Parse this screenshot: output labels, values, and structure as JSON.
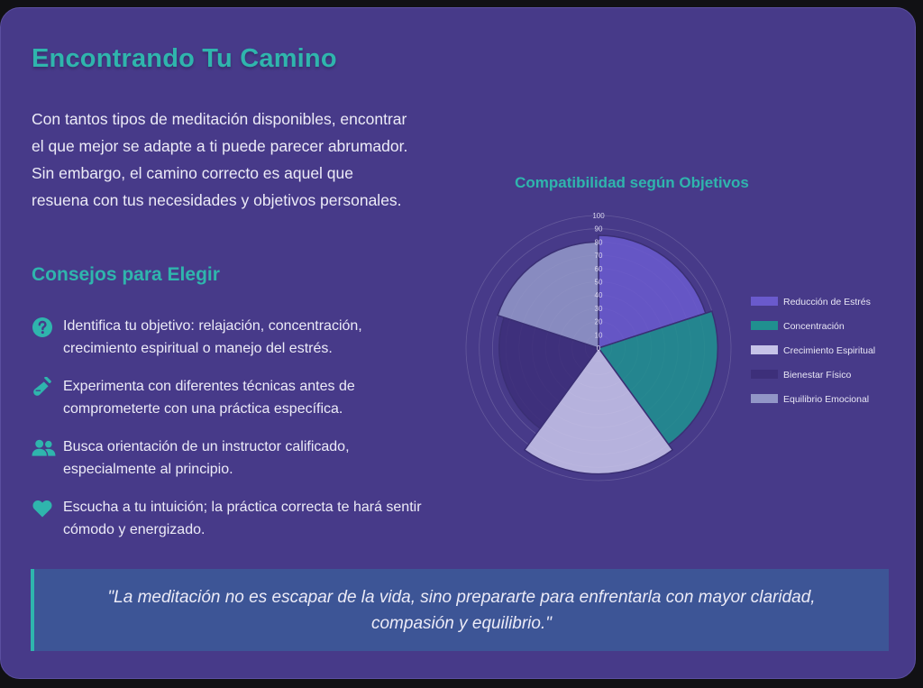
{
  "page": {
    "title": "Encontrando Tu Camino",
    "intro": "Con tantos tipos de meditación disponibles, encontrar el que mejor se adapte a ti puede parecer abrumador. Sin embargo, el camino correcto es aquel que resuena con tus necesidades y objetivos personales.",
    "subtitle": "Consejos para Elegir",
    "tips": [
      {
        "icon": "question-icon",
        "text": "Identifica tu objetivo: relajación, concentración, crecimiento espiritual o manejo del estrés."
      },
      {
        "icon": "flask-icon",
        "text": "Experimenta con diferentes técnicas antes de comprometerte con una práctica específica."
      },
      {
        "icon": "users-icon",
        "text": "Busca orientación de un instructor calificado, especialmente al principio."
      },
      {
        "icon": "heart-icon",
        "text": "Escucha a tu intuición; la práctica correcta te hará sentir cómodo y energizado."
      }
    ],
    "quote": "\"La meditación no es escapar de la vida, sino prepararte para enfrentarla con mayor claridad, compasión y equilibrio.\""
  },
  "colors": {
    "accent": "#2fb5ad",
    "background": "#473a89",
    "quote_background": "#3d5596"
  },
  "chart_data": {
    "type": "polarArea",
    "title": "Compatibilidad según Objetivos",
    "categories": [
      "Reducción de Estrés",
      "Concentración",
      "Crecimiento Espiritual",
      "Bienestar Físico",
      "Equilibrio Emocional"
    ],
    "values": [
      85,
      90,
      95,
      75,
      80
    ],
    "colors": [
      "#6a5acd",
      "#20908f",
      "#c6c3e8",
      "#3d2f7a",
      "#9296c7"
    ],
    "r_ticks": [
      0,
      10,
      20,
      30,
      40,
      50,
      60,
      70,
      80,
      90,
      100
    ],
    "r_range": [
      0,
      100
    ],
    "grid": true,
    "legend_position": "right"
  }
}
